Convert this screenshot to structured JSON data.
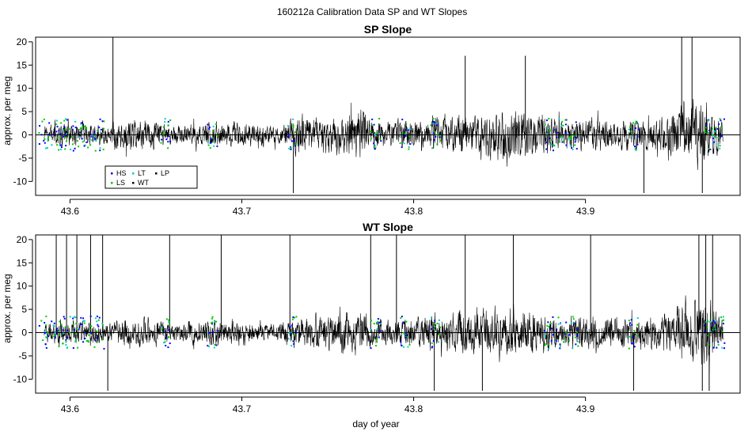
{
  "figure": {
    "title": "160212a   Calibration Data SP and WT Slopes",
    "xlabel": "day of year"
  },
  "colors": {
    "trace": "#000000",
    "HS": "#0000ff",
    "LS": "#00cc00",
    "LT": "#00cccc",
    "WT": "#000000",
    "LP": "#000000"
  },
  "chart_data": [
    {
      "type": "line",
      "title": "SP Slope",
      "ylabel": "approx. per meg",
      "xlim": [
        43.58,
        43.99
      ],
      "ylim": [
        -13,
        21
      ],
      "x_ticks": [
        43.6,
        43.7,
        43.8,
        43.9
      ],
      "x_tick_labels": [
        "43.6",
        "43.7",
        "43.8",
        "43.9"
      ],
      "y_ticks": [
        -10,
        -5,
        0,
        5,
        10,
        15,
        20
      ],
      "y_tick_labels": [
        "-10",
        "-5",
        "0",
        "5",
        "10",
        "15",
        "20"
      ],
      "hline": 0,
      "x_range": [
        43.585,
        43.98
      ],
      "series": [
        {
          "name": "HS",
          "kind": "points"
        },
        {
          "name": "LS",
          "kind": "points"
        },
        {
          "name": "LT",
          "kind": "points"
        },
        {
          "name": "WT",
          "kind": "points"
        },
        {
          "name": "LP",
          "kind": "points"
        }
      ],
      "envelope": {
        "x": [
          43.585,
          43.6,
          43.62,
          43.63,
          43.65,
          43.66,
          43.68,
          43.7,
          43.72,
          43.735,
          43.75,
          43.77,
          43.78,
          43.8,
          43.82,
          43.84,
          43.86,
          43.88,
          43.89,
          43.9,
          43.92,
          43.94,
          43.96,
          43.97,
          43.98
        ],
        "amplitude": [
          3,
          4,
          3,
          6,
          5,
          3,
          4,
          4,
          3,
          7,
          6,
          8,
          4,
          5,
          6,
          7,
          9,
          6,
          4,
          6,
          5,
          5,
          11,
          12,
          4
        ]
      },
      "spikes": [
        {
          "x": 43.625,
          "y": 21
        },
        {
          "x": 43.73,
          "y": -12.5
        },
        {
          "x": 43.83,
          "y": 17
        },
        {
          "x": 43.865,
          "y": 17
        },
        {
          "x": 43.934,
          "y": -12.5
        },
        {
          "x": 43.956,
          "y": 21
        },
        {
          "x": 43.962,
          "y": 21
        },
        {
          "x": 43.968,
          "y": -12.5
        }
      ],
      "legend": {
        "position": "bottom-left",
        "entries": [
          "HS",
          "LS",
          "LT",
          "WT",
          "LP"
        ]
      }
    },
    {
      "type": "line",
      "title": "WT Slope",
      "ylabel": "approx. per meg",
      "xlim": [
        43.58,
        43.99
      ],
      "ylim": [
        -13,
        21
      ],
      "x_ticks": [
        43.6,
        43.7,
        43.8,
        43.9
      ],
      "x_tick_labels": [
        "43.6",
        "43.7",
        "43.8",
        "43.9"
      ],
      "y_ticks": [
        -10,
        -5,
        0,
        5,
        10,
        15,
        20
      ],
      "y_tick_labels": [
        "-10",
        "-5",
        "0",
        "5",
        "10",
        "15",
        "20"
      ],
      "hline": 0,
      "x_range": [
        43.585,
        43.98
      ],
      "series": [
        {
          "name": "HS",
          "kind": "points"
        },
        {
          "name": "LS",
          "kind": "points"
        },
        {
          "name": "LT",
          "kind": "points"
        },
        {
          "name": "WT",
          "kind": "points"
        },
        {
          "name": "LP",
          "kind": "points"
        }
      ],
      "envelope": {
        "x": [
          43.585,
          43.6,
          43.62,
          43.63,
          43.65,
          43.66,
          43.68,
          43.7,
          43.72,
          43.735,
          43.75,
          43.77,
          43.78,
          43.8,
          43.82,
          43.84,
          43.86,
          43.88,
          43.89,
          43.9,
          43.92,
          43.94,
          43.96,
          43.97,
          43.98
        ],
        "amplitude": [
          3,
          4,
          3,
          5,
          5,
          3,
          4,
          4,
          3,
          5,
          6,
          7,
          4,
          5,
          6,
          7,
          9,
          5,
          4,
          6,
          5,
          5,
          10,
          12,
          4
        ]
      },
      "spikes": [
        {
          "x": 43.592,
          "y": 21
        },
        {
          "x": 43.598,
          "y": 21
        },
        {
          "x": 43.604,
          "y": 21
        },
        {
          "x": 43.612,
          "y": 21
        },
        {
          "x": 43.619,
          "y": 21
        },
        {
          "x": 43.622,
          "y": -12.5
        },
        {
          "x": 43.658,
          "y": 21
        },
        {
          "x": 43.688,
          "y": 21
        },
        {
          "x": 43.728,
          "y": 21
        },
        {
          "x": 43.775,
          "y": 21
        },
        {
          "x": 43.79,
          "y": 21
        },
        {
          "x": 43.812,
          "y": -12.5
        },
        {
          "x": 43.83,
          "y": 21
        },
        {
          "x": 43.84,
          "y": -12.5
        },
        {
          "x": 43.858,
          "y": 21
        },
        {
          "x": 43.903,
          "y": 21
        },
        {
          "x": 43.928,
          "y": -12.5
        },
        {
          "x": 43.966,
          "y": 21
        },
        {
          "x": 43.968,
          "y": -12.5
        },
        {
          "x": 43.97,
          "y": 21
        },
        {
          "x": 43.972,
          "y": -12.5
        },
        {
          "x": 43.974,
          "y": 21
        }
      ]
    }
  ]
}
